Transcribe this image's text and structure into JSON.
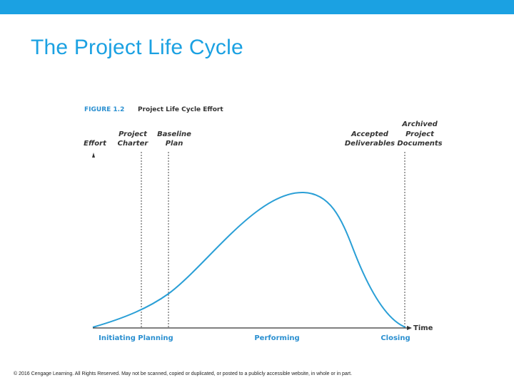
{
  "slide": {
    "title": "The Project Life Cycle",
    "accent_color": "#1ba1e2",
    "footer": "© 2016 Cengage Learning. All Rights Reserved. May not be scanned, copied or duplicated, or posted to a publicly accessible website, in whole or in part."
  },
  "figure": {
    "number": "FIGURE 1.2",
    "caption": "Project Life Cycle Effort",
    "number_color": "#2a8fd0",
    "curve_color": "#2a9fd6",
    "y_axis_label": "Effort",
    "x_axis_label": "Time",
    "milestones": {
      "project_charter": [
        "Project",
        "Charter"
      ],
      "baseline_plan": [
        "Baseline",
        "Plan"
      ],
      "accepted_deliverables": [
        "Accepted",
        "Deliverables"
      ],
      "archived_documents": [
        "Archived",
        "Project",
        "Documents"
      ]
    },
    "phases": {
      "initiating": "Initiating",
      "planning": "Planning",
      "performing": "Performing",
      "closing": "Closing"
    },
    "phase_color": "#2a8fd0"
  }
}
